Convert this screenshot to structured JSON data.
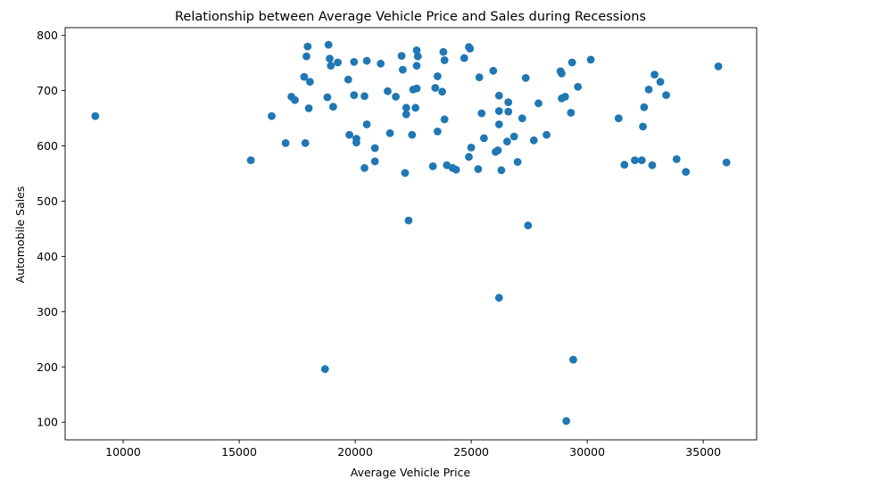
{
  "chart_data": {
    "type": "scatter",
    "title": "Relationship between Average Vehicle Price and Sales during Recessions",
    "xlabel": "Average Vehicle Price",
    "ylabel": "Automobile Sales",
    "xlim": [
      7500,
      37300
    ],
    "ylim": [
      68,
      814
    ],
    "xticks": [
      10000,
      15000,
      20000,
      25000,
      30000,
      35000
    ],
    "yticks": [
      100,
      200,
      300,
      400,
      500,
      600,
      700,
      800
    ],
    "grid": false,
    "marker_color": "#1f77b4",
    "points": [
      [
        8800,
        654
      ],
      [
        15500,
        574
      ],
      [
        16400,
        654
      ],
      [
        17000,
        605
      ],
      [
        17250,
        689
      ],
      [
        17400,
        683
      ],
      [
        17800,
        725
      ],
      [
        17850,
        605
      ],
      [
        17900,
        762
      ],
      [
        17950,
        780
      ],
      [
        18000,
        668
      ],
      [
        18050,
        716
      ],
      [
        18700,
        196
      ],
      [
        18800,
        688
      ],
      [
        18850,
        783
      ],
      [
        18900,
        758
      ],
      [
        18950,
        745
      ],
      [
        19050,
        671
      ],
      [
        19250,
        751
      ],
      [
        19700,
        720
      ],
      [
        19750,
        620
      ],
      [
        19950,
        692
      ],
      [
        19950,
        752
      ],
      [
        20050,
        613
      ],
      [
        20050,
        606
      ],
      [
        20400,
        560
      ],
      [
        20400,
        690
      ],
      [
        20500,
        639
      ],
      [
        20500,
        754
      ],
      [
        20850,
        572
      ],
      [
        20850,
        596
      ],
      [
        21100,
        749
      ],
      [
        21400,
        699
      ],
      [
        21500,
        623
      ],
      [
        21750,
        689
      ],
      [
        22000,
        763
      ],
      [
        22050,
        738
      ],
      [
        22150,
        551
      ],
      [
        22200,
        669
      ],
      [
        22200,
        657
      ],
      [
        22300,
        465
      ],
      [
        22450,
        620
      ],
      [
        22500,
        702
      ],
      [
        22600,
        669
      ],
      [
        22650,
        704
      ],
      [
        22650,
        773
      ],
      [
        22650,
        745
      ],
      [
        22700,
        762
      ],
      [
        23350,
        563
      ],
      [
        23450,
        705
      ],
      [
        23550,
        726
      ],
      [
        23550,
        626
      ],
      [
        23750,
        698
      ],
      [
        23800,
        770
      ],
      [
        23850,
        755
      ],
      [
        23850,
        648
      ],
      [
        23950,
        565
      ],
      [
        24200,
        560
      ],
      [
        24350,
        557
      ],
      [
        24700,
        759
      ],
      [
        24900,
        779
      ],
      [
        24900,
        580
      ],
      [
        24950,
        776
      ],
      [
        25000,
        597
      ],
      [
        25300,
        558
      ],
      [
        25350,
        724
      ],
      [
        25450,
        659
      ],
      [
        25550,
        614
      ],
      [
        25950,
        736
      ],
      [
        26050,
        589
      ],
      [
        26150,
        592
      ],
      [
        26200,
        325
      ],
      [
        26200,
        691
      ],
      [
        26200,
        639
      ],
      [
        26200,
        663
      ],
      [
        26300,
        556
      ],
      [
        26550,
        608
      ],
      [
        26600,
        679
      ],
      [
        26600,
        662
      ],
      [
        26850,
        617
      ],
      [
        27000,
        571
      ],
      [
        27200,
        650
      ],
      [
        27350,
        723
      ],
      [
        27450,
        456
      ],
      [
        27700,
        610
      ],
      [
        27900,
        677
      ],
      [
        28250,
        620
      ],
      [
        28850,
        735
      ],
      [
        28900,
        731
      ],
      [
        28900,
        686
      ],
      [
        29050,
        689
      ],
      [
        29100,
        102
      ],
      [
        29300,
        660
      ],
      [
        29350,
        751
      ],
      [
        29400,
        213
      ],
      [
        29600,
        707
      ],
      [
        30150,
        756
      ],
      [
        31350,
        650
      ],
      [
        31600,
        566
      ],
      [
        32050,
        574
      ],
      [
        32350,
        574
      ],
      [
        32400,
        635
      ],
      [
        32450,
        670
      ],
      [
        32650,
        702
      ],
      [
        32800,
        565
      ],
      [
        32900,
        729
      ],
      [
        33150,
        716
      ],
      [
        33400,
        692
      ],
      [
        33850,
        576
      ],
      [
        34250,
        553
      ],
      [
        35650,
        744
      ],
      [
        36000,
        570
      ]
    ]
  }
}
